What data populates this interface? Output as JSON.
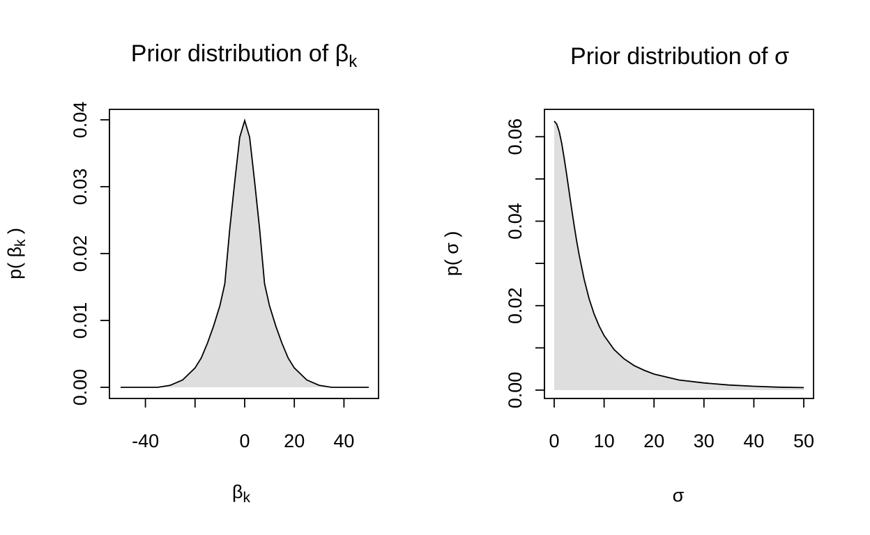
{
  "chart_data": [
    {
      "type": "area",
      "title": "Prior distribution of  β",
      "title_subscript": "k",
      "xlabel": "β",
      "xlabel_subscript": "k",
      "ylabel_prefix": "p( β",
      "ylabel_subscript": "k",
      "ylabel_suffix": " )",
      "xlim": [
        -50,
        50
      ],
      "ylim": [
        0,
        0.04
      ],
      "x_ticks": [
        -40,
        -20,
        0,
        20,
        40
      ],
      "x_tick_labels": [
        "-40",
        "",
        "0",
        "20",
        "40"
      ],
      "y_ticks": [
        0,
        0.01,
        0.02,
        0.03,
        0.04
      ],
      "y_tick_labels": [
        "0.00",
        "0.01",
        "0.02",
        "0.03",
        "0.04"
      ],
      "fill_color": "#dedede",
      "line_color": "#000000",
      "grid": false,
      "series": [
        {
          "x": [
            -50,
            -45,
            -40,
            -35,
            -30,
            -25,
            -20,
            -17.5,
            -15,
            -12.5,
            -10,
            -8,
            -6,
            -4,
            -2,
            0,
            2,
            4,
            6,
            8,
            10,
            12.5,
            15,
            17.5,
            20,
            25,
            30,
            35,
            40,
            45,
            50
          ],
          "y": [
            0.0,
            0.0,
            0.0,
            0.0,
            0.0003,
            0.0011,
            0.0029,
            0.0044,
            0.0066,
            0.0092,
            0.0122,
            0.0155,
            0.0237,
            0.0308,
            0.0374,
            0.0399,
            0.0374,
            0.0308,
            0.0237,
            0.0155,
            0.0122,
            0.0092,
            0.0066,
            0.0044,
            0.0029,
            0.0011,
            0.0003,
            0.0,
            0.0,
            0.0,
            0.0
          ]
        }
      ]
    },
    {
      "type": "area",
      "title": "Prior distribution of  σ",
      "xlabel": "σ",
      "ylabel": "p( σ )",
      "xlim": [
        0,
        50
      ],
      "ylim": [
        0,
        0.064
      ],
      "x_ticks": [
        0,
        10,
        20,
        30,
        40,
        50
      ],
      "x_tick_labels": [
        "0",
        "10",
        "20",
        "30",
        "40",
        "50"
      ],
      "y_ticks": [
        0,
        0.01,
        0.02,
        0.03,
        0.04,
        0.05,
        0.06
      ],
      "y_tick_labels": [
        "0.00",
        "",
        "0.02",
        "",
        "0.04",
        "",
        "0.06"
      ],
      "fill_color": "#dedede",
      "line_color": "#000000",
      "grid": false,
      "series": [
        {
          "x": [
            0,
            0.5,
            1,
            1.5,
            2,
            2.5,
            3,
            3.5,
            4,
            4.5,
            5,
            6,
            7,
            8,
            9,
            10,
            12,
            14,
            16,
            18,
            20,
            25,
            30,
            35,
            40,
            45,
            50
          ],
          "y": [
            0.0637,
            0.063,
            0.0612,
            0.0585,
            0.0549,
            0.051,
            0.0469,
            0.0428,
            0.039,
            0.0353,
            0.032,
            0.0262,
            0.0216,
            0.018,
            0.0152,
            0.0129,
            0.0096,
            0.0074,
            0.0058,
            0.0047,
            0.0038,
            0.0024,
            0.0017,
            0.0012,
            0.0009,
            0.0007,
            0.0006
          ]
        }
      ]
    }
  ]
}
